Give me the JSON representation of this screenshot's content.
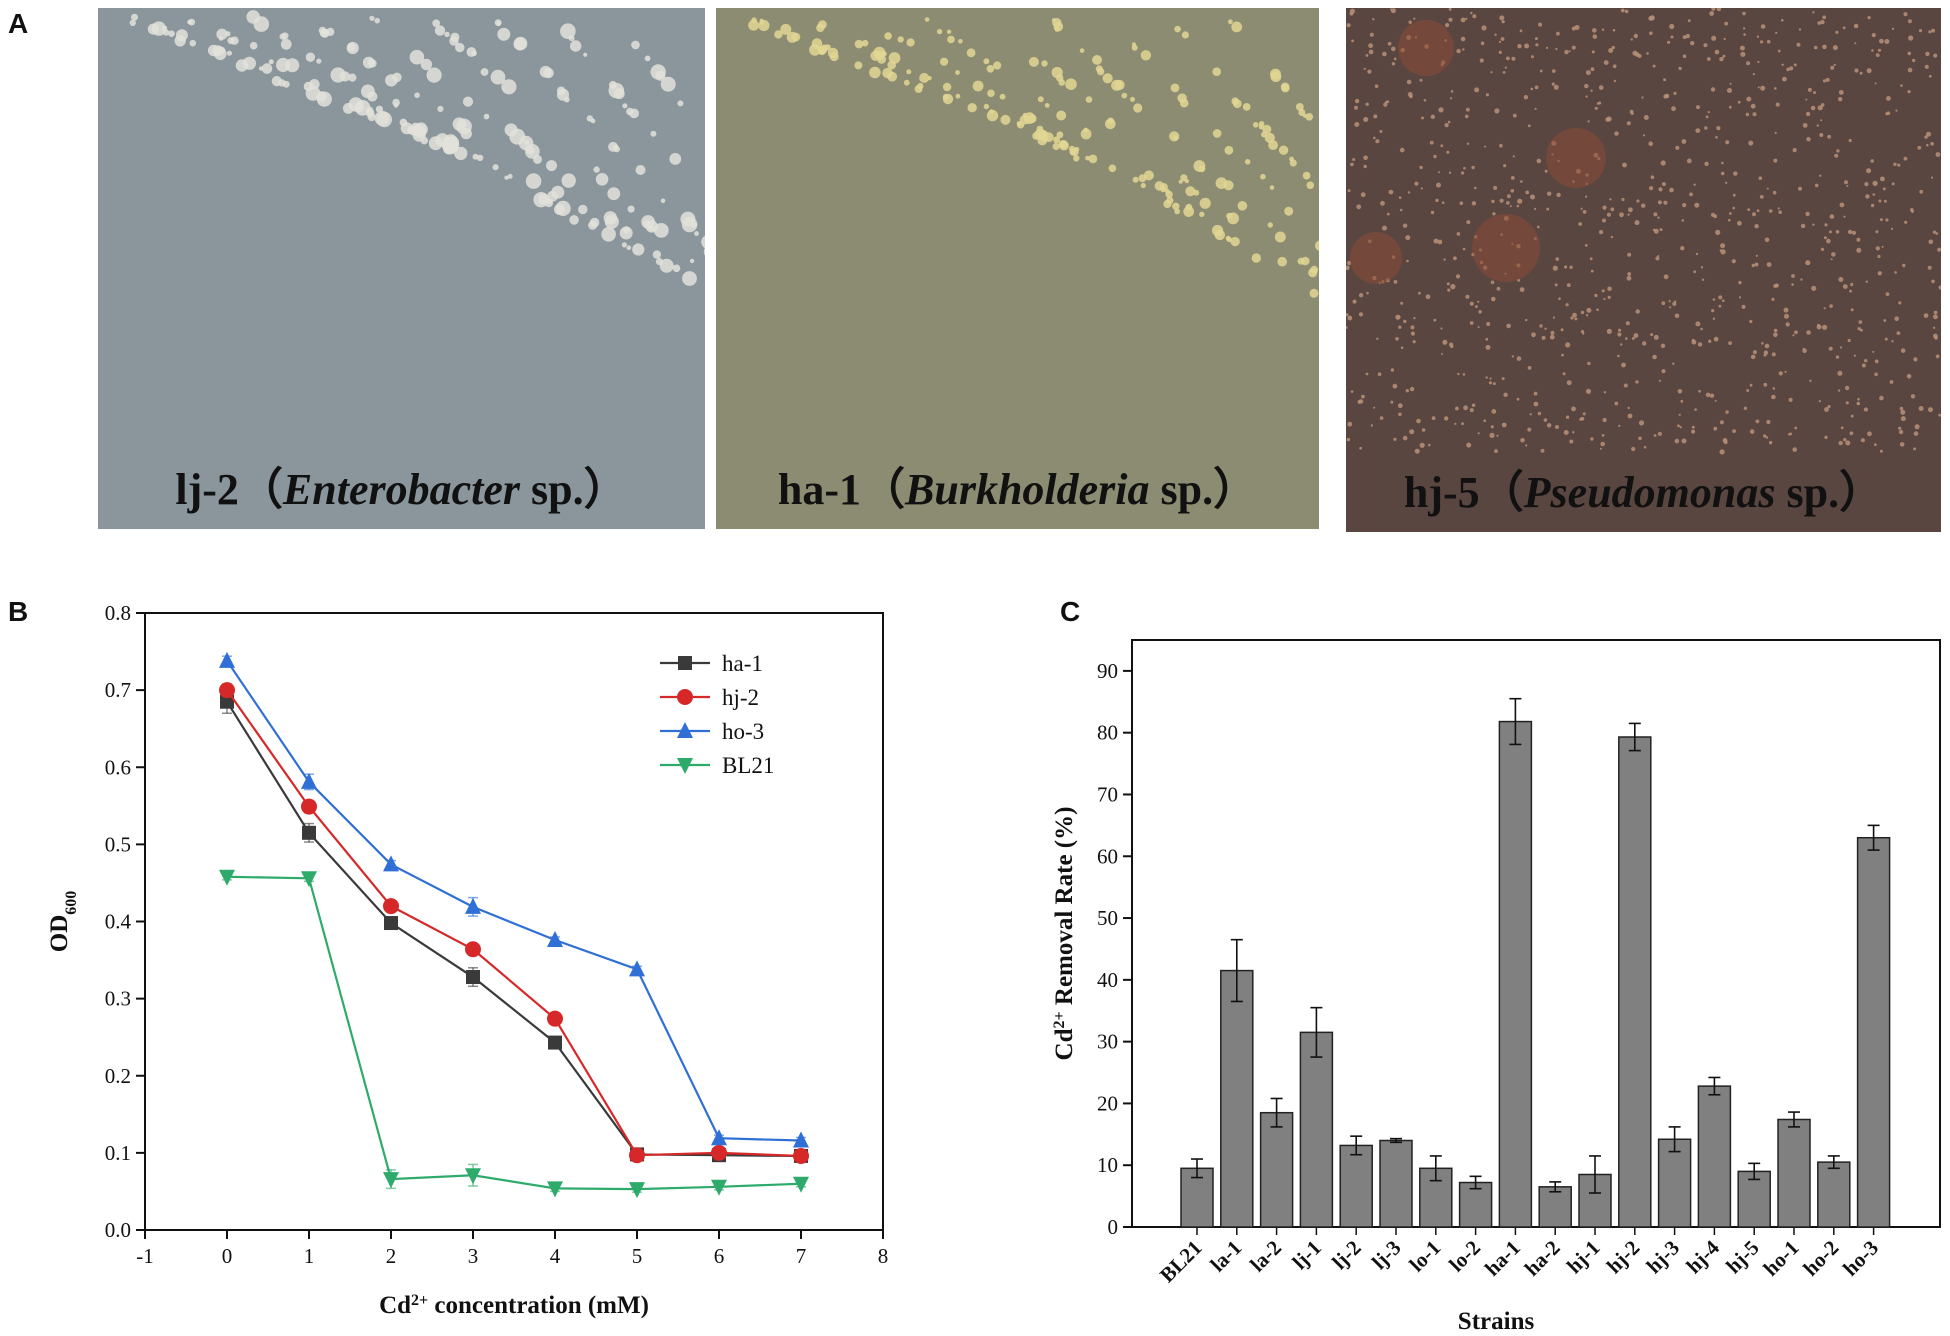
{
  "panels": {
    "A": {
      "letter": "A",
      "photos": [
        {
          "code": "lj-2",
          "genus": "Enterobacter",
          "suffix": "sp.",
          "bg": "#8a969c",
          "colony": "#e2e2da"
        },
        {
          "code": "ha-1",
          "genus": "Burkholderia",
          "suffix": "sp.",
          "bg": "#8c8c72",
          "colony": "#e2d694"
        },
        {
          "code": "hj-5",
          "genus": "Pseudomonas",
          "suffix": "sp.",
          "bg": "#5a4640",
          "colony": "#b89078"
        }
      ]
    },
    "B": {
      "letter": "B"
    },
    "C": {
      "letter": "C"
    }
  },
  "chart_data": [
    {
      "type": "line",
      "panel": "B",
      "title": "",
      "xlabel": "Cd2+ concentration (mM)",
      "ylabel": "OD600",
      "xlim": [
        -1,
        8
      ],
      "ylim": [
        0.0,
        0.8
      ],
      "xticks": [
        "-1",
        "0",
        "1",
        "2",
        "3",
        "4",
        "5",
        "6",
        "7",
        "8"
      ],
      "yticks": [
        "0.0",
        "0.1",
        "0.2",
        "0.3",
        "0.4",
        "0.5",
        "0.6",
        "0.7",
        "0.8"
      ],
      "x": [
        0,
        1,
        2,
        3,
        4,
        5,
        6,
        7
      ],
      "legend_position": "top-right",
      "series": [
        {
          "name": "ha-1",
          "color": "#3a3a3a",
          "marker": "square",
          "values": [
            0.685,
            0.515,
            0.398,
            0.328,
            0.243,
            0.098,
            0.097,
            0.096
          ],
          "errors": [
            0.015,
            0.012,
            0.005,
            0.012,
            0.005,
            0.004,
            0.004,
            0.004
          ]
        },
        {
          "name": "hj-2",
          "color": "#d62828",
          "marker": "circle",
          "values": [
            0.7,
            0.549,
            0.42,
            0.364,
            0.274,
            0.097,
            0.1,
            0.096
          ],
          "errors": [
            0.008,
            0.008,
            0.006,
            0.006,
            0.005,
            0.004,
            0.004,
            0.004
          ]
        },
        {
          "name": "ho-3",
          "color": "#2f6fd6",
          "marker": "triangle-up",
          "values": [
            0.738,
            0.581,
            0.474,
            0.419,
            0.376,
            0.338,
            0.119,
            0.116
          ],
          "errors": [
            0.006,
            0.01,
            0.005,
            0.012,
            0.004,
            0.004,
            0.004,
            0.004
          ]
        },
        {
          "name": "BL21",
          "color": "#2eab6a",
          "marker": "triangle-down",
          "values": [
            0.458,
            0.456,
            0.066,
            0.071,
            0.054,
            0.053,
            0.056,
            0.06
          ],
          "errors": [
            0.004,
            0.004,
            0.012,
            0.014,
            0.004,
            0.004,
            0.004,
            0.004
          ]
        }
      ]
    },
    {
      "type": "bar",
      "panel": "C",
      "title": "",
      "xlabel": "Strains",
      "ylabel": "Cd2+ Removal Rate (%)",
      "ylim": [
        0,
        95
      ],
      "yticks": [
        "0",
        "10",
        "20",
        "30",
        "40",
        "50",
        "60",
        "70",
        "80",
        "90"
      ],
      "bar_color": "#808080",
      "categories": [
        "BL21",
        "la-1",
        "la-2",
        "lj-1",
        "lj-2",
        "lj-3",
        "lo-1",
        "lo-2",
        "ha-1",
        "ha-2",
        "hj-1",
        "hj-2",
        "hj-3",
        "hj-4",
        "hj-5",
        "ho-1",
        "ho-2",
        "ho-3"
      ],
      "values": [
        9.5,
        41.5,
        18.5,
        31.5,
        13.2,
        14.0,
        9.5,
        7.2,
        81.8,
        6.5,
        8.5,
        79.3,
        14.2,
        22.8,
        9.0,
        17.4,
        10.5,
        63.0
      ],
      "errors": [
        1.5,
        5.0,
        2.3,
        4.0,
        1.5,
        0.3,
        2.0,
        1.0,
        3.7,
        0.8,
        3.0,
        2.2,
        2.0,
        1.4,
        1.3,
        1.2,
        1.0,
        2.0
      ]
    }
  ]
}
